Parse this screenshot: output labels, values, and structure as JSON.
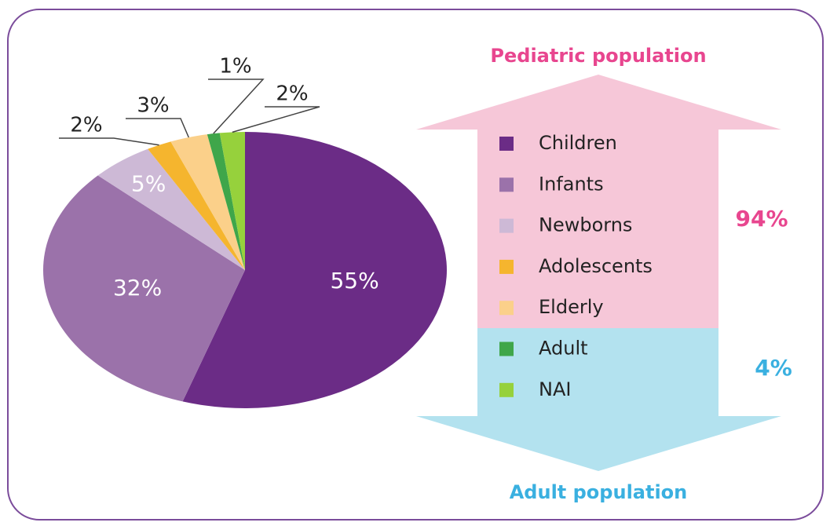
{
  "chart_data": {
    "type": "pie",
    "categories": [
      "Children",
      "Infants",
      "Newborns",
      "Adolescents",
      "Elderly",
      "Adult",
      "NAI"
    ],
    "values": [
      55,
      32,
      5,
      2,
      3,
      1,
      2
    ],
    "value_labels": [
      "55%",
      "32%",
      "5%",
      "2%",
      "3%",
      "1%",
      "2%"
    ],
    "colors": [
      "#6b2c86",
      "#9b72aa",
      "#cdb9d6",
      "#f5b52e",
      "#fbd08a",
      "#3fa64a",
      "#96d13c"
    ],
    "annotations": [
      "Pediatric population",
      "94%",
      "4%",
      "Adult population"
    ]
  }
}
